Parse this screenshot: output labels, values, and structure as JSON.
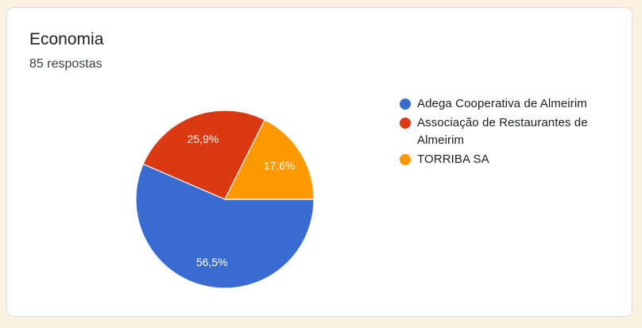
{
  "page": {
    "background_color": "#FAF1E1"
  },
  "card": {
    "background_color": "#FFFFFF",
    "border_color": "#DADCE0",
    "title": "Economia",
    "subtitle": "85 respostas"
  },
  "chart_data": {
    "type": "pie",
    "title": "Economia",
    "subtitle": "85 respostas",
    "total_responses_text": "85 respostas",
    "legend_position": "right",
    "label_style": "percent_inside_white",
    "start_angle_deg_from_east_clockwise": 0,
    "slices": [
      {
        "label": "Adega Cooperativa de Almeirim",
        "value_percent": 56.5,
        "display": "56,5%",
        "color": "#3A6BD1"
      },
      {
        "label": "Associação de Restaurantes de Almeirim",
        "value_percent": 25.9,
        "display": "25,9%",
        "color": "#DB3912"
      },
      {
        "label": "TORRIBA SA",
        "value_percent": 17.6,
        "display": "17,6%",
        "color": "#FF9900"
      }
    ]
  }
}
